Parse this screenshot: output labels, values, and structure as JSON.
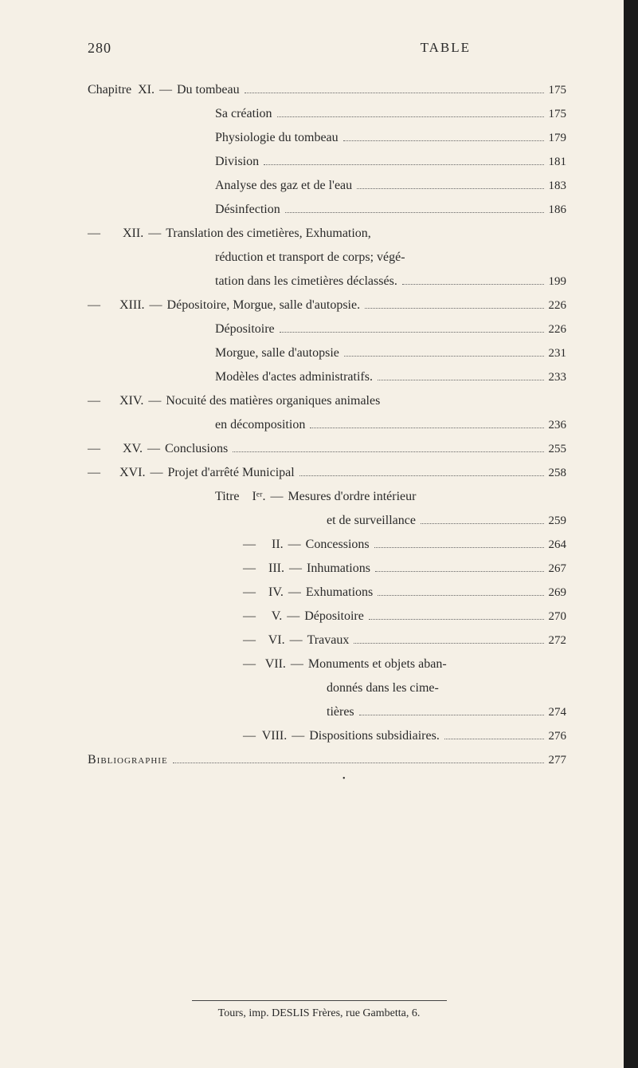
{
  "page_number": "280",
  "header_title": "TABLE",
  "entries": [
    {
      "label": "Chapitre  XI.",
      "dash": "—",
      "text": "Du tombeau",
      "page": "175",
      "indent": ""
    },
    {
      "label": "",
      "dash": "",
      "text": "Sa création",
      "page": "175",
      "indent": "continuation"
    },
    {
      "label": "",
      "dash": "",
      "text": "Physiologie du tombeau",
      "page": "179",
      "indent": "continuation"
    },
    {
      "label": "",
      "dash": "",
      "text": "Division",
      "page": "181",
      "indent": "continuation"
    },
    {
      "label": "",
      "dash": "",
      "text": "Analyse des gaz et de l'eau",
      "page": "183",
      "indent": "continuation"
    },
    {
      "label": "",
      "dash": "",
      "text": "Désinfection",
      "page": "186",
      "indent": "continuation"
    },
    {
      "label": "—       XII.",
      "dash": "—",
      "text": "Translation des cimetières, Exhumation,",
      "page": "",
      "indent": "",
      "nodots": true
    },
    {
      "label": "",
      "dash": "",
      "text": "réduction et transport de corps; végé-",
      "page": "",
      "indent": "continuation",
      "nodots": true
    },
    {
      "label": "",
      "dash": "",
      "text": "tation dans les cimetières déclassés.",
      "page": "199",
      "indent": "continuation"
    },
    {
      "label": "—      XIII.",
      "dash": "—",
      "text": "Dépositoire, Morgue, salle d'autopsie.",
      "page": "226",
      "indent": ""
    },
    {
      "label": "",
      "dash": "",
      "text": "Dépositoire",
      "page": "226",
      "indent": "continuation"
    },
    {
      "label": "",
      "dash": "",
      "text": "Morgue, salle d'autopsie",
      "page": "231",
      "indent": "continuation"
    },
    {
      "label": "",
      "dash": "",
      "text": "Modèles d'actes administratifs.",
      "page": "233",
      "indent": "continuation"
    },
    {
      "label": "—      XIV.",
      "dash": "—",
      "text": "Nocuité des matières organiques animales",
      "page": "",
      "indent": "",
      "nodots": true
    },
    {
      "label": "",
      "dash": "",
      "text": "en décomposition",
      "page": "236",
      "indent": "continuation"
    },
    {
      "label": "—       XV.",
      "dash": "—",
      "text": "Conclusions",
      "page": "255",
      "indent": ""
    },
    {
      "label": "—      XVI.",
      "dash": "—",
      "text": "Projet d'arrêté Municipal",
      "page": "258",
      "indent": ""
    },
    {
      "label": "Titre    Iᵉʳ.",
      "dash": "—",
      "text": "Mesures d'ordre intérieur",
      "page": "",
      "indent": "titre-line",
      "nodots": true
    },
    {
      "label": "",
      "dash": "",
      "text": "et de surveillance",
      "page": "259",
      "indent": "titre-sub",
      "subpad": true
    },
    {
      "label": "—     II.",
      "dash": "—",
      "text": "Concessions",
      "page": "264",
      "indent": "titre-sub"
    },
    {
      "label": "—    III.",
      "dash": "—",
      "text": "Inhumations",
      "page": "267",
      "indent": "titre-sub"
    },
    {
      "label": "—    IV.",
      "dash": "—",
      "text": "Exhumations",
      "page": "269",
      "indent": "titre-sub"
    },
    {
      "label": "—     V.",
      "dash": "—",
      "text": "Dépositoire",
      "page": "270",
      "indent": "titre-sub"
    },
    {
      "label": "—    VI.",
      "dash": "—",
      "text": "Travaux",
      "page": "272",
      "indent": "titre-sub"
    },
    {
      "label": "—   VII.",
      "dash": "—",
      "text": "Monuments et objets aban-",
      "page": "",
      "indent": "titre-sub",
      "nodots": true
    },
    {
      "label": "",
      "dash": "",
      "text": "donnés dans les cime-",
      "page": "",
      "indent": "titre-sub",
      "subpad": true,
      "nodots": true
    },
    {
      "label": "",
      "dash": "",
      "text": "tières",
      "page": "274",
      "indent": "titre-sub",
      "subpad": true
    },
    {
      "label": "—  VIII.",
      "dash": "—",
      "text": "Dispositions subsidiaires.",
      "page": "276",
      "indent": "titre-sub"
    },
    {
      "label": "Bibliographie",
      "dash": "",
      "text": "",
      "page": "277",
      "indent": "biblio",
      "smallcaps": true
    }
  ],
  "footer": "Tours, imp. DESLIS Frères, rue Gambetta, 6.",
  "colors": {
    "background": "#f5f0e6",
    "text": "#2a2a2a",
    "border": "#1a1a1a"
  }
}
